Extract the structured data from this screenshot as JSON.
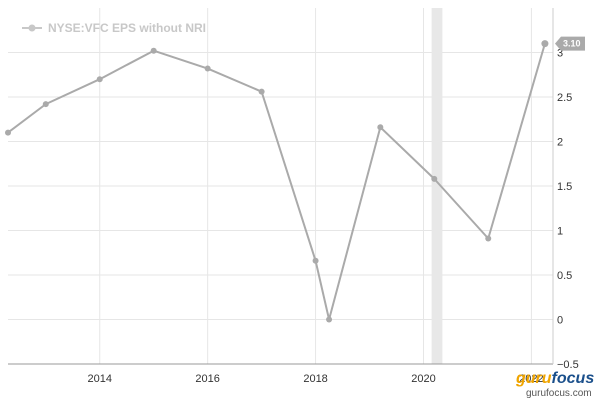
{
  "chart_data": {
    "type": "line",
    "title": "",
    "xlabel": "",
    "ylabel": "",
    "legend": "top-left",
    "series": [
      {
        "name": "NYSE:VFC EPS without NRI",
        "color": "#aaaaaa",
        "x": [
          2012.3,
          2013.0,
          2014.0,
          2015.0,
          2016.0,
          2017.0,
          2018.0,
          2018.25,
          2019.2,
          2020.2,
          2021.2,
          2022.25
        ],
        "values": [
          2.1,
          2.42,
          2.7,
          3.02,
          2.82,
          2.56,
          0.66,
          0.0,
          2.16,
          1.58,
          0.91,
          3.1
        ]
      }
    ],
    "last_value_label": "3.10",
    "xlim": [
      2012.3,
      2022.4
    ],
    "ylim": [
      -0.5,
      3.5
    ],
    "x_ticks": [
      2014,
      2016,
      2018,
      2020,
      2022
    ],
    "x_tick_labels": [
      "2014",
      "2016",
      "2018",
      "2020",
      "2022"
    ],
    "y_ticks": [
      -0.5,
      0,
      0.5,
      1,
      1.5,
      2,
      2.5,
      3
    ],
    "y_tick_labels": [
      "−0.5",
      "0",
      "0.5",
      "1",
      "1.5",
      "2",
      "2.5",
      "3"
    ],
    "shaded_band": [
      2020.15,
      2020.35
    ],
    "grid": true
  },
  "watermark": {
    "brand_part1": "guru",
    "brand_part2": "focus",
    "url": "gurufocus.com"
  }
}
